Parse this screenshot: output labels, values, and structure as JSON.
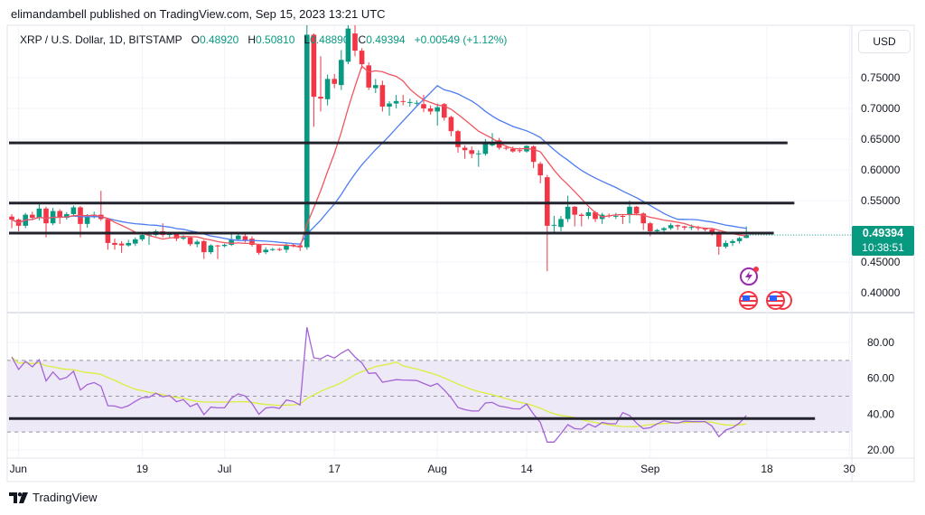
{
  "header": {
    "publisher_line": "elimandambell published on TradingView.com, Sep 15, 2023 13:21 UTC"
  },
  "legend": {
    "symbol": "XRP / U.S. Dollar, 1D, BITSTAMP",
    "o_label": "O",
    "o": "0.48920",
    "h_label": "H",
    "h": "0.50810",
    "l_label": "L",
    "l": "0.48890",
    "c_label": "C",
    "c": "0.49394",
    "change": "+0.00549 (+1.12%)"
  },
  "currency_button": "USD",
  "last_price": {
    "value": "0.49394",
    "countdown": "10:38:51"
  },
  "footer": {
    "logo_text": "TradingView"
  },
  "colors": {
    "up": "#089981",
    "down": "#f23645",
    "ma_fast": "#f0555f",
    "ma_slow": "#4c7cf3",
    "rsi": "#a463d6",
    "rsi_ma": "#dcee3c",
    "rsi_band": "#ede9f7",
    "drawing": "#23232e"
  },
  "chart_data": [
    {
      "type": "candlestick",
      "pane": "price",
      "y_ticks": [
        "0.75000",
        "0.70000",
        "0.65000",
        "0.60000",
        "0.55000",
        "0.45000",
        "0.40000"
      ],
      "ylim": [
        0.39,
        0.84
      ],
      "x_ticks": [
        {
          "label": "Jun",
          "date": "2023-06-01"
        },
        {
          "label": "19",
          "date": "2023-06-19"
        },
        {
          "label": "Jul",
          "date": "2023-07-01"
        },
        {
          "label": "17",
          "date": "2023-07-17"
        },
        {
          "label": "Aug",
          "date": "2023-08-01"
        },
        {
          "label": "14",
          "date": "2023-08-14"
        },
        {
          "label": "Sep",
          "date": "2023-09-01"
        },
        {
          "label": "18",
          "date": "2023-09-18"
        },
        {
          "label": "30",
          "date": "2023-09-30"
        }
      ],
      "candles_columns": [
        "date",
        "open",
        "high",
        "low",
        "close"
      ],
      "candles": [
        [
          "2023-05-31",
          0.524,
          0.528,
          0.505,
          0.519
        ],
        [
          "2023-06-01",
          0.519,
          0.521,
          0.5,
          0.509
        ],
        [
          "2023-06-02",
          0.509,
          0.53,
          0.505,
          0.527
        ],
        [
          "2023-06-03",
          0.527,
          0.532,
          0.518,
          0.522
        ],
        [
          "2023-06-04",
          0.522,
          0.547,
          0.518,
          0.537
        ],
        [
          "2023-06-05",
          0.537,
          0.54,
          0.49,
          0.513
        ],
        [
          "2023-06-06",
          0.513,
          0.538,
          0.51,
          0.533
        ],
        [
          "2023-06-07",
          0.533,
          0.536,
          0.512,
          0.522
        ],
        [
          "2023-06-08",
          0.522,
          0.531,
          0.519,
          0.528
        ],
        [
          "2023-06-09",
          0.528,
          0.542,
          0.525,
          0.539
        ],
        [
          "2023-06-10",
          0.539,
          0.541,
          0.49,
          0.512
        ],
        [
          "2023-06-11",
          0.512,
          0.528,
          0.506,
          0.524
        ],
        [
          "2023-06-12",
          0.524,
          0.532,
          0.521,
          0.527
        ],
        [
          "2023-06-13",
          0.527,
          0.566,
          0.517,
          0.52
        ],
        [
          "2023-06-14",
          0.52,
          0.522,
          0.47,
          0.481
        ],
        [
          "2023-06-15",
          0.481,
          0.488,
          0.47,
          0.478
        ],
        [
          "2023-06-16",
          0.48,
          0.484,
          0.465,
          0.477
        ],
        [
          "2023-06-17",
          0.477,
          0.486,
          0.475,
          0.481
        ],
        [
          "2023-06-18",
          0.48,
          0.49,
          0.476,
          0.487
        ],
        [
          "2023-06-19",
          0.487,
          0.498,
          0.484,
          0.494
        ],
        [
          "2023-06-20",
          0.494,
          0.5,
          0.478,
          0.4945
        ],
        [
          "2023-06-21",
          0.494,
          0.503,
          0.492,
          0.5
        ],
        [
          "2023-06-22",
          0.5,
          0.513,
          0.49,
          0.494
        ],
        [
          "2023-06-23",
          0.494,
          0.499,
          0.49,
          0.496
        ],
        [
          "2023-06-24",
          0.496,
          0.498,
          0.484,
          0.488
        ],
        [
          "2023-06-25",
          0.488,
          0.494,
          0.486,
          0.49
        ],
        [
          "2023-06-26",
          0.49,
          0.492,
          0.476,
          0.479
        ],
        [
          "2023-06-27",
          0.479,
          0.486,
          0.474,
          0.483
        ],
        [
          "2023-06-28",
          0.484,
          0.486,
          0.455,
          0.466
        ],
        [
          "2023-06-29",
          0.466,
          0.479,
          0.463,
          0.477
        ],
        [
          "2023-06-30",
          0.477,
          0.478,
          0.455,
          0.476
        ],
        [
          "2023-07-01",
          0.476,
          0.48,
          0.474,
          0.478
        ],
        [
          "2023-07-02",
          0.478,
          0.499,
          0.476,
          0.487
        ],
        [
          "2023-07-03",
          0.487,
          0.496,
          0.485,
          0.493
        ],
        [
          "2023-07-04",
          0.492,
          0.495,
          0.482,
          0.485
        ],
        [
          "2023-07-05",
          0.488,
          0.492,
          0.475,
          0.478
        ],
        [
          "2023-07-06",
          0.478,
          0.48,
          0.462,
          0.465
        ],
        [
          "2023-07-07",
          0.466,
          0.474,
          0.463,
          0.47
        ],
        [
          "2023-07-08",
          0.47,
          0.473,
          0.468,
          0.471
        ],
        [
          "2023-07-09",
          0.471,
          0.473,
          0.468,
          0.47
        ],
        [
          "2023-07-10",
          0.47,
          0.48,
          0.465,
          0.478
        ],
        [
          "2023-07-11",
          0.478,
          0.481,
          0.474,
          0.477
        ],
        [
          "2023-07-12",
          0.477,
          0.48,
          0.468,
          0.474
        ],
        [
          "2023-07-13",
          0.474,
          0.935,
          0.47,
          0.82
        ],
        [
          "2023-07-14",
          0.82,
          0.822,
          0.67,
          0.719
        ],
        [
          "2023-07-15",
          0.719,
          0.785,
          0.695,
          0.716
        ],
        [
          "2023-07-16",
          0.715,
          0.755,
          0.705,
          0.748
        ],
        [
          "2023-07-17",
          0.748,
          0.756,
          0.733,
          0.74
        ],
        [
          "2023-07-18",
          0.738,
          0.795,
          0.73,
          0.779
        ],
        [
          "2023-07-19",
          0.776,
          0.87,
          0.772,
          0.83
        ],
        [
          "2023-07-20",
          0.822,
          0.84,
          0.785,
          0.794
        ],
        [
          "2023-07-21",
          0.794,
          0.798,
          0.765,
          0.772
        ],
        [
          "2023-07-22",
          0.77,
          0.775,
          0.73,
          0.734
        ],
        [
          "2023-07-23",
          0.733,
          0.748,
          0.725,
          0.738
        ],
        [
          "2023-07-24",
          0.738,
          0.745,
          0.695,
          0.703
        ],
        [
          "2023-07-25",
          0.703,
          0.712,
          0.688,
          0.708
        ],
        [
          "2023-07-26",
          0.708,
          0.722,
          0.7,
          0.712
        ],
        [
          "2023-07-27",
          0.712,
          0.722,
          0.705,
          0.711
        ],
        [
          "2023-07-28",
          0.71,
          0.716,
          0.703,
          0.7105
        ],
        [
          "2023-07-29",
          0.709,
          0.713,
          0.705,
          0.7092
        ],
        [
          "2023-07-30",
          0.707,
          0.722,
          0.694,
          0.7
        ],
        [
          "2023-07-31",
          0.7,
          0.705,
          0.69,
          0.695
        ],
        [
          "2023-08-01",
          0.695,
          0.708,
          0.672,
          0.702
        ],
        [
          "2023-08-02",
          0.707,
          0.709,
          0.68,
          0.685
        ],
        [
          "2023-08-03",
          0.686,
          0.688,
          0.655,
          0.663
        ],
        [
          "2023-08-04",
          0.663,
          0.665,
          0.628,
          0.637
        ],
        [
          "2023-08-05",
          0.636,
          0.64,
          0.618,
          0.632
        ],
        [
          "2023-08-06",
          0.632,
          0.638,
          0.619,
          0.626
        ],
        [
          "2023-08-07",
          0.626,
          0.632,
          0.605,
          0.6268
        ],
        [
          "2023-08-08",
          0.626,
          0.65,
          0.623,
          0.645
        ],
        [
          "2023-08-09",
          0.64,
          0.66,
          0.638,
          0.644
        ],
        [
          "2023-08-10",
          0.648,
          0.652,
          0.633,
          0.636
        ],
        [
          "2023-08-11",
          0.636,
          0.64,
          0.632,
          0.6355
        ],
        [
          "2023-08-12",
          0.634,
          0.638,
          0.628,
          0.63
        ],
        [
          "2023-08-13",
          0.632,
          0.636,
          0.628,
          0.6318
        ],
        [
          "2023-08-14",
          0.63,
          0.64,
          0.628,
          0.639
        ],
        [
          "2023-08-15",
          0.638,
          0.64,
          0.603,
          0.613
        ],
        [
          "2023-08-16",
          0.61,
          0.613,
          0.578,
          0.591
        ],
        [
          "2023-08-17",
          0.588,
          0.592,
          0.435,
          0.509
        ],
        [
          "2023-08-18",
          0.51,
          0.525,
          0.495,
          0.5105
        ],
        [
          "2023-08-19",
          0.507,
          0.525,
          0.5,
          0.52
        ],
        [
          "2023-08-20",
          0.52,
          0.558,
          0.515,
          0.54
        ],
        [
          "2023-08-21",
          0.54,
          0.541,
          0.508,
          0.527
        ],
        [
          "2023-08-22",
          0.527,
          0.53,
          0.508,
          0.525
        ],
        [
          "2023-08-23",
          0.525,
          0.538,
          0.52,
          0.531
        ],
        [
          "2023-08-24",
          0.531,
          0.533,
          0.515,
          0.52
        ],
        [
          "2023-08-25",
          0.52,
          0.53,
          0.512,
          0.527
        ],
        [
          "2023-08-26",
          0.526,
          0.529,
          0.522,
          0.5255
        ],
        [
          "2023-08-27",
          0.525,
          0.53,
          0.52,
          0.5252
        ],
        [
          "2023-08-28",
          0.525,
          0.528,
          0.512,
          0.5248
        ],
        [
          "2023-08-29",
          0.527,
          0.55,
          0.513,
          0.54
        ],
        [
          "2023-08-30",
          0.54,
          0.541,
          0.526,
          0.529
        ],
        [
          "2023-08-31",
          0.529,
          0.531,
          0.502,
          0.513
        ],
        [
          "2023-09-01",
          0.513,
          0.515,
          0.492,
          0.5
        ],
        [
          "2023-09-02",
          0.5,
          0.504,
          0.499,
          0.502
        ],
        [
          "2023-09-03",
          0.502,
          0.507,
          0.499,
          0.505
        ],
        [
          "2023-09-04",
          0.505,
          0.513,
          0.502,
          0.51
        ],
        [
          "2023-09-05",
          0.51,
          0.511,
          0.502,
          0.508
        ],
        [
          "2023-09-06",
          0.508,
          0.509,
          0.502,
          0.506
        ],
        [
          "2023-09-07",
          0.506,
          0.511,
          0.502,
          0.507
        ],
        [
          "2023-09-08",
          0.507,
          0.509,
          0.501,
          0.505
        ],
        [
          "2023-09-09",
          0.505,
          0.506,
          0.5,
          0.503
        ],
        [
          "2023-09-10",
          0.503,
          0.505,
          0.493,
          0.496
        ],
        [
          "2023-09-11",
          0.498,
          0.5,
          0.462,
          0.475
        ],
        [
          "2023-09-12",
          0.475,
          0.485,
          0.472,
          0.481
        ],
        [
          "2023-09-13",
          0.481,
          0.487,
          0.476,
          0.484
        ],
        [
          "2023-09-14",
          0.484,
          0.491,
          0.48,
          0.4889
        ],
        [
          "2023-09-15",
          0.4892,
          0.5081,
          0.4889,
          0.49394
        ]
      ],
      "last_price": 0.49394,
      "drawings": [
        {
          "type": "horizontal-line",
          "price": 0.644,
          "from": "2023-05-31",
          "to": "2023-09-21"
        },
        {
          "type": "horizontal-line",
          "price": 0.546,
          "from": "2023-05-31",
          "to": "2023-09-22"
        },
        {
          "type": "horizontal-line",
          "price": 0.497,
          "from": "2023-05-31",
          "to": "2023-09-19"
        }
      ]
    },
    {
      "type": "line",
      "pane": "rsi",
      "y_ticks": [
        "80.00",
        "60.00",
        "40.00",
        "20.00"
      ],
      "ylim": [
        14,
        94
      ],
      "band": [
        30,
        70
      ],
      "midline": 50,
      "start_date": "2023-05-31",
      "values": [
        71.9,
        64.9,
        69.4,
        66.4,
        70.3,
        58.5,
        63.5,
        59.3,
        60.5,
        63.9,
        53.4,
        56.5,
        57.6,
        55.6,
        44.7,
        44.5,
        43.4,
        44.7,
        47.1,
        49.2,
        49.4,
        51.6,
        49.7,
        50.4,
        46.9,
        48.1,
        44.2,
        45.9,
        39.7,
        43.9,
        43.5,
        43.5,
        48.9,
        51.3,
        50.1,
        45.9,
        39.9,
        43.4,
        43.9,
        43.2,
        47.9,
        47.1,
        45.1,
        88.4,
        71.4,
        70.8,
        72.9,
        71.3,
        74.0,
        76.1,
        71.9,
        68.6,
        62.7,
        63.0,
        57.8,
        58.5,
        59.2,
        59.0,
        58.9,
        58.7,
        57.1,
        55.6,
        57.1,
        53.4,
        49.2,
        43.7,
        42.5,
        41.7,
        41.7,
        46.2,
        46.5,
        44.5,
        43.9,
        43.0,
        42.9,
        45.6,
        40.0,
        35.3,
        24.4,
        24.4,
        29.1,
        34.1,
        31.9,
        31.6,
        34.5,
        32.8,
        35.3,
        34.6,
        34.6,
        40.8,
        39.2,
        35.0,
        31.9,
        32.4,
        34.5,
        36.3,
        35.3,
        35.0,
        36.1,
        35.8,
        35.8,
        35.8,
        33.3,
        27.4,
        31.1,
        32.4,
        35.0,
        39.2
      ],
      "drawings": [
        {
          "type": "horizontal-line",
          "value": 37.5,
          "from": "2023-05-31",
          "to": "2023-09-25"
        }
      ]
    }
  ]
}
